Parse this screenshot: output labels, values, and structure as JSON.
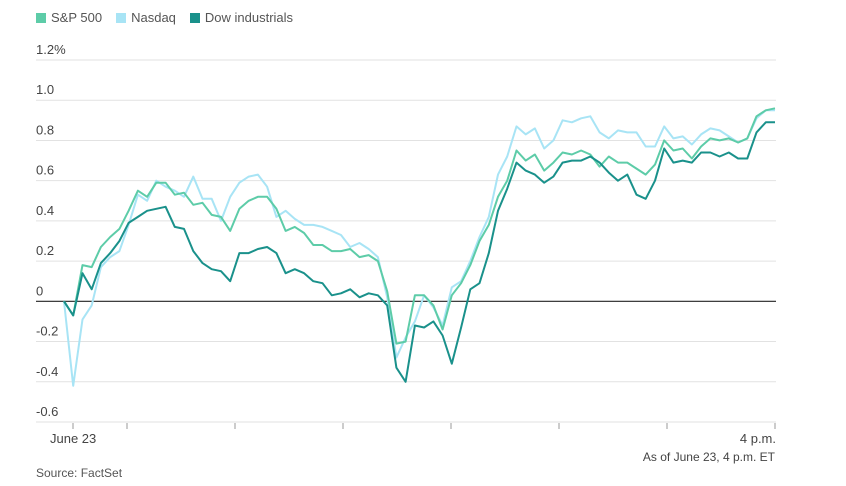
{
  "legend": [
    {
      "label": "S&P 500",
      "color": "#5dcca8"
    },
    {
      "label": "Nasdaq",
      "color": "#a8e4f5"
    },
    {
      "label": "Dow industrials",
      "color": "#1a918b"
    }
  ],
  "footer": {
    "as_of": "As of June 23, 4 p.m. ET",
    "source": "Source: FactSet"
  },
  "chart_data": {
    "type": "line",
    "title": "",
    "xlabel": "",
    "ylabel": "",
    "ylim": [
      -0.6,
      1.2
    ],
    "y_ticks": [
      {
        "value": 1.2,
        "label": "1.2%"
      },
      {
        "value": 1.0,
        "label": "1.0"
      },
      {
        "value": 0.8,
        "label": "0.8"
      },
      {
        "value": 0.6,
        "label": "0.6"
      },
      {
        "value": 0.4,
        "label": "0.4"
      },
      {
        "value": 0.2,
        "label": "0.2"
      },
      {
        "value": 0,
        "label": "0"
      },
      {
        "value": -0.2,
        "label": "-0.2"
      },
      {
        "value": -0.4,
        "label": "-0.4"
      },
      {
        "value": -0.6,
        "label": "-0.6"
      }
    ],
    "x_ticks": [
      {
        "index": 0,
        "label": "June 23"
      },
      {
        "index": 65,
        "label": "4 p.m."
      }
    ],
    "legend_position": "top-left",
    "grid": true,
    "series": [
      {
        "name": "S&P 500",
        "color": "#5dcca8",
        "values": [
          0,
          -0.07,
          0.18,
          0.17,
          0.27,
          0.32,
          0.36,
          0.45,
          0.55,
          0.52,
          0.59,
          0.59,
          0.53,
          0.54,
          0.48,
          0.49,
          0.43,
          0.42,
          0.35,
          0.46,
          0.5,
          0.52,
          0.52,
          0.46,
          0.35,
          0.37,
          0.34,
          0.28,
          0.28,
          0.25,
          0.25,
          0.26,
          0.22,
          0.23,
          0.2,
          0.05,
          -0.21,
          -0.2,
          0.03,
          0.03,
          -0.02,
          -0.14,
          0.03,
          0.09,
          0.18,
          0.3,
          0.38,
          0.52,
          0.6,
          0.75,
          0.7,
          0.73,
          0.65,
          0.69,
          0.74,
          0.73,
          0.75,
          0.73,
          0.67,
          0.72,
          0.69,
          0.69,
          0.66,
          0.63,
          0.68,
          0.8,
          0.75,
          0.76,
          0.71,
          0.77,
          0.81,
          0.8,
          0.81,
          0.79,
          0.81,
          0.92,
          0.95,
          0.96
        ]
      },
      {
        "name": "Nasdaq",
        "color": "#a8e4f5",
        "values": [
          0,
          -0.42,
          -0.09,
          -0.02,
          0.17,
          0.22,
          0.25,
          0.38,
          0.53,
          0.5,
          0.6,
          0.57,
          0.55,
          0.52,
          0.62,
          0.51,
          0.51,
          0.4,
          0.52,
          0.59,
          0.62,
          0.63,
          0.57,
          0.42,
          0.45,
          0.41,
          0.38,
          0.38,
          0.37,
          0.35,
          0.33,
          0.27,
          0.29,
          0.26,
          0.22,
          0.02,
          -0.28,
          -0.18,
          -0.1,
          0.03,
          -0.03,
          -0.12,
          0.07,
          0.1,
          0.2,
          0.32,
          0.42,
          0.63,
          0.72,
          0.87,
          0.83,
          0.86,
          0.76,
          0.8,
          0.9,
          0.89,
          0.91,
          0.92,
          0.84,
          0.81,
          0.85,
          0.84,
          0.84,
          0.77,
          0.77,
          0.87,
          0.81,
          0.82,
          0.78,
          0.83,
          0.86,
          0.85,
          0.82,
          0.79,
          0.81,
          0.91,
          0.95,
          0.95
        ]
      },
      {
        "name": "Dow industrials",
        "color": "#1a918b",
        "values": [
          0,
          -0.07,
          0.14,
          0.06,
          0.19,
          0.24,
          0.3,
          0.39,
          0.42,
          0.45,
          0.46,
          0.47,
          0.37,
          0.36,
          0.25,
          0.19,
          0.16,
          0.15,
          0.1,
          0.24,
          0.24,
          0.26,
          0.27,
          0.24,
          0.14,
          0.16,
          0.14,
          0.1,
          0.09,
          0.03,
          0.04,
          0.06,
          0.02,
          0.04,
          0.03,
          -0.02,
          -0.33,
          -0.4,
          -0.12,
          -0.13,
          -0.1,
          -0.17,
          -0.31,
          -0.13,
          0.06,
          0.09,
          0.24,
          0.45,
          0.56,
          0.69,
          0.65,
          0.63,
          0.59,
          0.62,
          0.69,
          0.7,
          0.7,
          0.72,
          0.69,
          0.64,
          0.6,
          0.63,
          0.53,
          0.51,
          0.6,
          0.76,
          0.69,
          0.7,
          0.69,
          0.74,
          0.74,
          0.72,
          0.74,
          0.71,
          0.71,
          0.84,
          0.89,
          0.89
        ]
      }
    ]
  }
}
